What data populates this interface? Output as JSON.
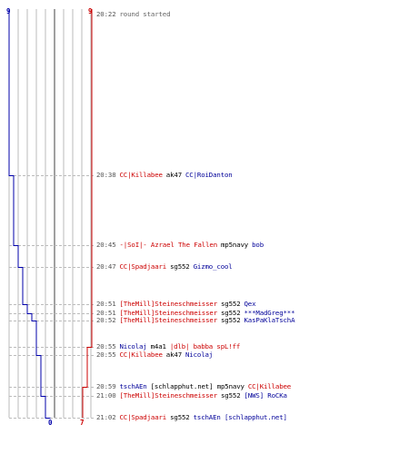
{
  "colors": {
    "team_red": "#cc0000",
    "team_blue": "#0000aa",
    "grid_gray": "#bbbbbb",
    "dash_gray": "#bbbbbb",
    "text_gray": "#555555"
  },
  "scores": {
    "blue_start": "9",
    "red_start": "9",
    "blue_end": "0",
    "red_end": "7"
  },
  "scoreline": {
    "blue_alive": [
      9,
      8,
      7,
      6,
      5,
      4,
      3,
      2,
      1,
      0
    ],
    "red_alive": [
      9,
      8,
      7
    ]
  },
  "events": [
    {
      "time": "20:22",
      "kind": "msg",
      "text": "round started"
    },
    {
      "time": "20:38",
      "killer": "CC|Killabee",
      "killer_team": "red",
      "weapon": "ak47",
      "victim": "CC|RoiDanton",
      "victim_team": "blue"
    },
    {
      "time": "20:45",
      "killer": "-|SoI|- Azrael The Fallen",
      "killer_team": "red",
      "weapon": "mp5navy",
      "victim": "bob",
      "victim_team": "blue"
    },
    {
      "time": "20:47",
      "killer": "CC|Spadjaari",
      "killer_team": "red",
      "weapon": "sg552",
      "victim": "Gizmo_cool",
      "victim_team": "blue"
    },
    {
      "time": "20:51",
      "killer": "[TheMill]Steineschmeisser",
      "killer_team": "red",
      "weapon": "sg552",
      "victim": "Qex",
      "victim_team": "blue"
    },
    {
      "time": "20:51",
      "killer": "[TheMill]Steineschmeisser",
      "killer_team": "red",
      "weapon": "sg552",
      "victim": "***MadGreg***",
      "victim_team": "blue"
    },
    {
      "time": "20:52",
      "killer": "[TheMill]Steineschmeisser",
      "killer_team": "red",
      "weapon": "sg552",
      "victim": "KasPaKlaTschA",
      "victim_team": "blue"
    },
    {
      "time": "20:55",
      "killer": "Nicolaj",
      "killer_team": "blue",
      "weapon": "m4a1",
      "victim": "|dlb| babba spL!ff",
      "victim_team": "red"
    },
    {
      "time": "20:55",
      "killer": "CC|Killabee",
      "killer_team": "red",
      "weapon": "ak47",
      "victim": "Nicolaj",
      "victim_team": "blue"
    },
    {
      "time": "20:59",
      "killer": "tschAEn",
      "killer_team": "blue",
      "weapon": "[schlapphut.net] mp5navy",
      "victim": "CC|Killabee",
      "victim_team": "red"
    },
    {
      "time": "21:00",
      "killer": "[TheMill]Steineschmeisser",
      "killer_team": "red",
      "weapon": "sg552",
      "victim": "[NWS] RoCKa",
      "victim_team": "blue"
    },
    {
      "time": "21:02",
      "killer": "CC|Spadjaari",
      "killer_team": "red",
      "weapon": "sg552",
      "victim": "tschAEn [schlapphut.net]",
      "victim_team": "blue"
    }
  ]
}
